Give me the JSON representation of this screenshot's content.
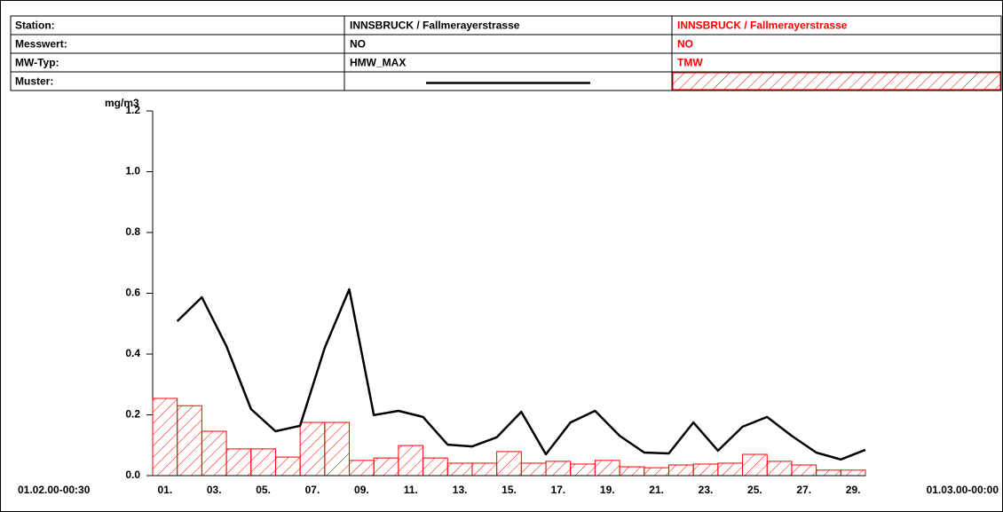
{
  "chart_data": {
    "type": "bar",
    "table_labels": [
      "Station:",
      "Messwert:",
      "MW-Typ:",
      "Muster:"
    ],
    "y_unit": "mg/m3",
    "x_start_label": "01.02.00-00:30",
    "x_end_label": "01.03.00-00:00",
    "categories": [
      "01.",
      null,
      "03.",
      null,
      "05.",
      null,
      "07.",
      null,
      "09.",
      null,
      "11.",
      null,
      "13.",
      null,
      "15.",
      null,
      "17.",
      null,
      "19.",
      null,
      "21.",
      null,
      "23.",
      null,
      "25.",
      null,
      "27.",
      null,
      "29."
    ],
    "ylim": [
      0,
      1.2
    ],
    "yticks": [
      {
        "value": 0,
        "label": "0.0"
      },
      0.2,
      0.4,
      0.6,
      0.8,
      {
        "value": 1,
        "label": "1.0"
      },
      1.2
    ],
    "series": [
      {
        "name": "HMW_MAX",
        "station": "INNSBRUCK / Fallmerayerstrasse",
        "parameter": "NO",
        "type": "line",
        "color": "#000000",
        "values": [
          0.508,
          0.587,
          0.426,
          0.219,
          0.146,
          0.164,
          0.42,
          0.613,
          0.199,
          0.213,
          0.193,
          0.102,
          0.096,
          0.126,
          0.21,
          0.07,
          0.175,
          0.213,
          0.131,
          0.076,
          0.073,
          0.175,
          0.082,
          0.161,
          0.193,
          0.131,
          0.076,
          0.053,
          0.085
        ]
      },
      {
        "name": "TMW",
        "station": "INNSBRUCK / Fallmerayerstrasse",
        "parameter": "NO",
        "type": "bar",
        "color": "#ff0000",
        "values": [
          0.254,
          0.23,
          0.146,
          0.088,
          0.088,
          0.061,
          0.175,
          0.175,
          0.05,
          0.058,
          0.099,
          0.058,
          0.041,
          0.041,
          0.079,
          0.041,
          0.047,
          0.038,
          0.05,
          0.029,
          0.026,
          0.035,
          0.038,
          0.041,
          0.07,
          0.047,
          0.035,
          0.018,
          0.018
        ]
      }
    ]
  }
}
